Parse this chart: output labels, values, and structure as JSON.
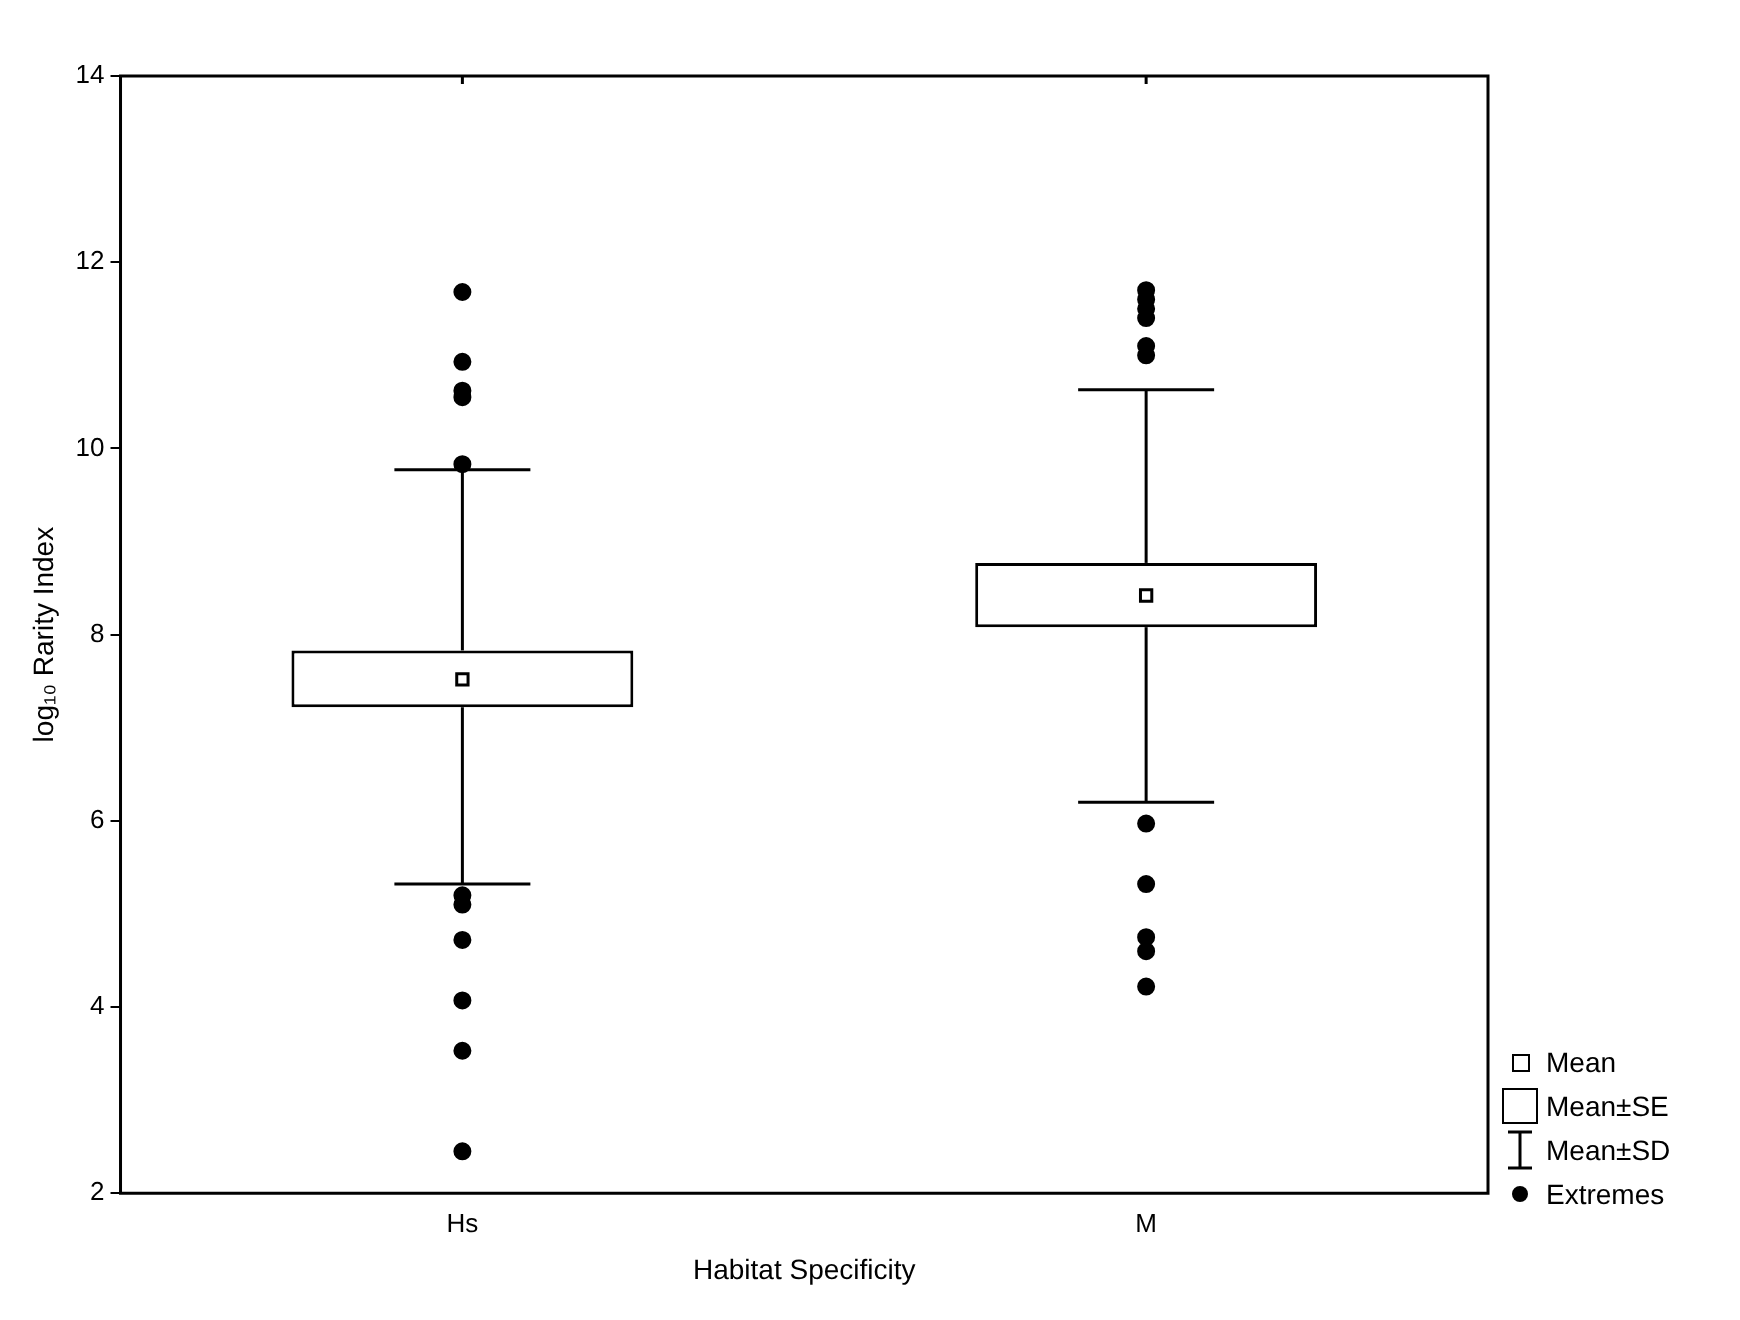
{
  "chart_data": {
    "type": "box",
    "xlabel": "Habitat Specificity",
    "ylabel": "log₁₀ Rarity Index",
    "categories": [
      "Hs",
      "M"
    ],
    "boxes": [
      {
        "low": 5.32,
        "q1": 7.22,
        "median": 7.52,
        "q3": 7.83,
        "high": 9.77,
        "outliers": [
          11.68,
          10.93,
          10.62,
          10.55,
          9.83,
          5.2,
          5.1,
          4.72,
          4.07,
          3.53,
          2.45
        ]
      },
      {
        "low": 6.2,
        "q1": 8.08,
        "median": 8.42,
        "q3": 8.77,
        "high": 10.63,
        "outliers": [
          11.7,
          11.6,
          11.5,
          11.4,
          11.1,
          11.0,
          5.97,
          5.32,
          4.75,
          4.6,
          4.22
        ]
      }
    ],
    "color": "#000000",
    "ylim": [
      2,
      14
    ],
    "yticks": [
      2,
      4,
      6,
      8,
      10,
      12,
      14
    ],
    "grid": false,
    "annotations": [
      "Mean",
      "Mean±SE",
      "Mean±SD",
      "Extremes"
    ]
  }
}
